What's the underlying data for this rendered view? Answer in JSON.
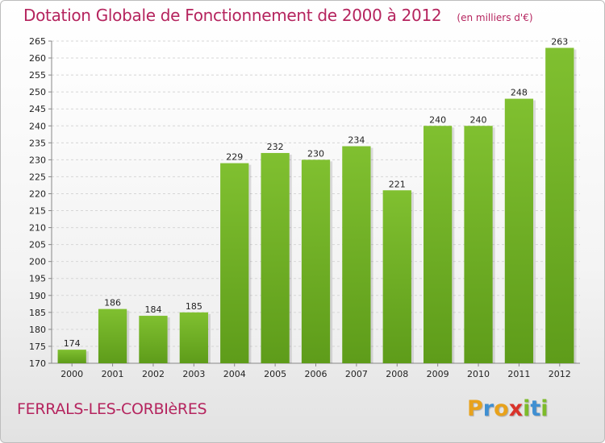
{
  "chart_data": {
    "type": "bar",
    "title": "Dotation Globale de Fonctionnement de 2000 à 2012",
    "subtitle": "(en milliers d'€)",
    "categories": [
      "2000",
      "2001",
      "2002",
      "2003",
      "2004",
      "2005",
      "2006",
      "2007",
      "2008",
      "2009",
      "2010",
      "2011",
      "2012"
    ],
    "values": [
      174,
      186,
      184,
      185,
      229,
      232,
      230,
      234,
      221,
      240,
      240,
      248,
      263
    ],
    "ylim": [
      170,
      265
    ],
    "ytick_step": 5,
    "grid": true,
    "bar_color": "#80c030",
    "bar_color_dark": "#5e9c1a"
  },
  "footer": {
    "commune": "FERRALS-LES-CORBIèRES"
  },
  "brand": {
    "letters": [
      {
        "ch": "P",
        "color": "#e8a21c"
      },
      {
        "ch": "r",
        "color": "#3f8fd2"
      },
      {
        "ch": "o",
        "color": "#e8a21c"
      },
      {
        "ch": "x",
        "color": "#d9332b"
      },
      {
        "ch": "i",
        "color": "#7dbb2a"
      },
      {
        "ch": "t",
        "color": "#3f8fd2"
      },
      {
        "ch": "i",
        "color": "#7dbb2a"
      }
    ]
  }
}
